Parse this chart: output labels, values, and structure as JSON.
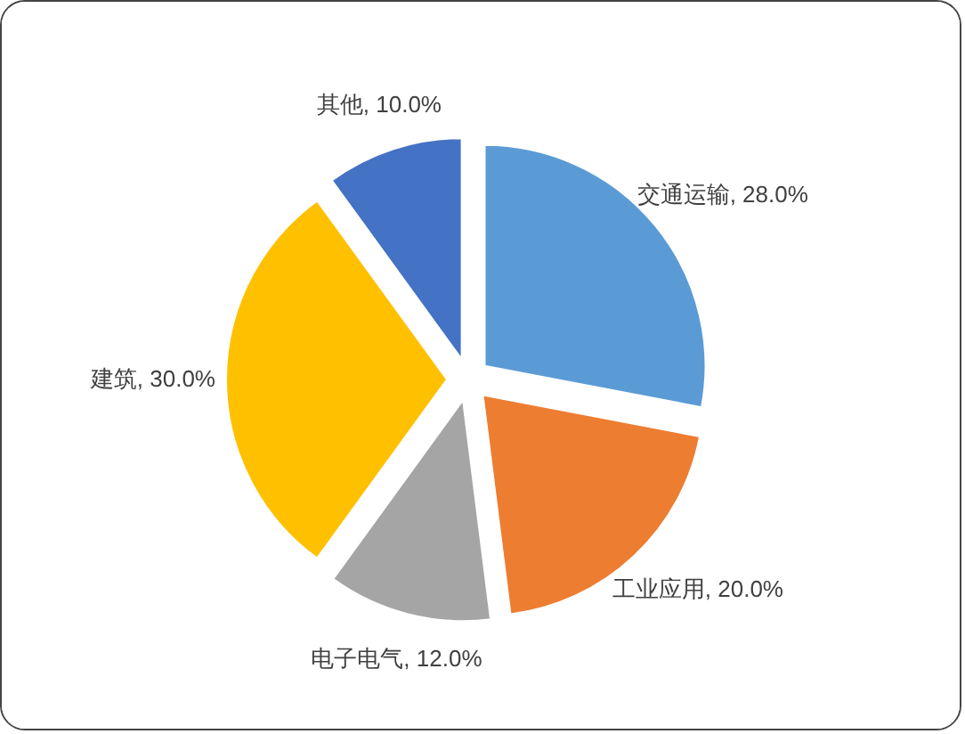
{
  "chart_data": {
    "type": "pie",
    "categories": [
      "交通运输",
      "工业应用",
      "电子电气",
      "建筑",
      "其他"
    ],
    "values": [
      28,
      20,
      12,
      30,
      10
    ],
    "colors": [
      "#5b9bd5",
      "#ed7d31",
      "#a5a5a5",
      "#ffc000",
      "#4472c4"
    ],
    "value_labels": [
      "28.0%",
      "20.0%",
      "12.0%",
      "30.0%",
      "10.0%"
    ]
  }
}
